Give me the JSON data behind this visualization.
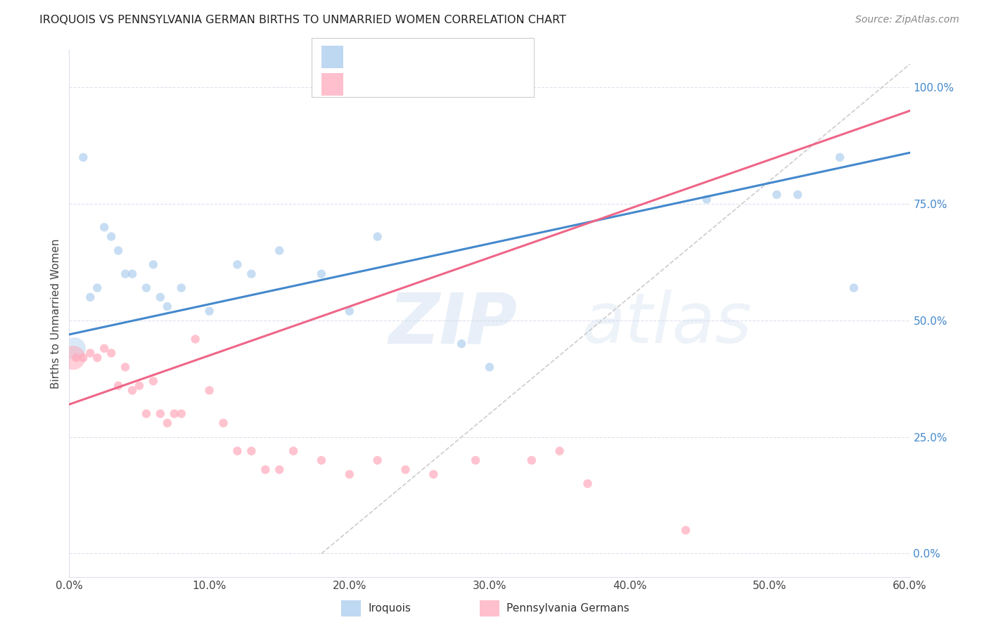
{
  "title": "IROQUOIS VS PENNSYLVANIA GERMAN BIRTHS TO UNMARRIED WOMEN CORRELATION CHART",
  "source": "Source: ZipAtlas.com",
  "ylabel": "Births to Unmarried Women",
  "blue_color": "#AACCEE",
  "pink_color": "#FFAABB",
  "blue_line_color": "#4488CC",
  "pink_line_color": "#EE6688",
  "ref_line_color": "#CCCCCC",
  "grid_color": "#E0E0EE",
  "bg_color": "#FFFFFF",
  "xlim": [
    0,
    60
  ],
  "ylim": [
    -5,
    108
  ],
  "xticks": [
    0,
    10,
    20,
    30,
    40,
    50,
    60
  ],
  "xtick_labels": [
    "0.0%",
    "10.0%",
    "20.0%",
    "30.0%",
    "40.0%",
    "50.0%",
    "60.0%"
  ],
  "yticks_right": [
    0,
    25,
    50,
    75,
    100
  ],
  "ytick_labels_right": [
    "0.0%",
    "25.0%",
    "50.0%",
    "75.0%",
    "100.0%"
  ],
  "legend_label1": "Iroquois",
  "legend_label2": "Pennsylvania Germans",
  "iroquois_x": [
    1.0,
    2.5,
    3.0,
    3.5,
    4.5,
    5.5,
    6.5,
    7.0,
    10.0,
    12.0,
    15.0,
    18.0,
    22.0,
    28.0,
    45.5,
    50.5,
    55.0,
    1.5,
    2.0,
    4.0,
    6.0,
    8.0,
    13.0,
    20.0,
    30.0,
    52.0,
    56.0
  ],
  "iroquois_y": [
    85.0,
    70.0,
    68.0,
    65.0,
    60.0,
    57.0,
    55.0,
    53.0,
    52.0,
    62.0,
    65.0,
    60.0,
    68.0,
    45.0,
    76.0,
    77.0,
    85.0,
    55.0,
    57.0,
    60.0,
    62.0,
    57.0,
    60.0,
    52.0,
    40.0,
    77.0,
    57.0
  ],
  "pagerman_x": [
    0.5,
    1.0,
    1.5,
    2.0,
    2.5,
    3.0,
    3.5,
    4.0,
    4.5,
    5.0,
    5.5,
    6.0,
    6.5,
    7.5,
    8.0,
    9.0,
    10.0,
    11.0,
    12.0,
    13.0,
    14.0,
    15.0,
    16.0,
    18.0,
    20.0,
    22.0,
    24.0,
    26.0,
    29.0,
    33.0,
    35.0,
    37.0,
    7.0,
    44.0
  ],
  "pagerman_y": [
    42.0,
    42.0,
    43.0,
    42.0,
    44.0,
    43.0,
    36.0,
    40.0,
    35.0,
    36.0,
    30.0,
    37.0,
    30.0,
    30.0,
    30.0,
    46.0,
    35.0,
    28.0,
    22.0,
    22.0,
    18.0,
    18.0,
    22.0,
    20.0,
    17.0,
    20.0,
    18.0,
    17.0,
    20.0,
    20.0,
    22.0,
    15.0,
    28.0,
    5.0
  ],
  "pagerman_sizes_list": [
    80,
    80,
    80,
    80,
    80,
    80,
    80,
    80,
    80,
    80,
    80,
    80,
    80,
    80,
    80,
    80,
    80,
    80,
    80,
    80,
    80,
    80,
    80,
    80,
    80,
    80,
    80,
    80,
    80,
    80,
    80,
    80,
    80,
    80
  ],
  "pagerman_large_x": [
    0.3
  ],
  "pagerman_large_y": [
    42.0
  ],
  "pagerman_large_size": [
    600
  ],
  "iroquois_sizes_list": [
    80,
    80,
    80,
    80,
    80,
    80,
    80,
    80,
    80,
    80,
    80,
    80,
    80,
    80,
    80,
    80,
    80,
    80,
    80,
    80,
    80,
    80,
    80,
    80,
    80,
    80,
    80
  ],
  "blue_reg_x0": 0,
  "blue_reg_y0": 47.0,
  "blue_reg_x1": 60,
  "blue_reg_y1": 86.0,
  "pink_reg_x0": 0,
  "pink_reg_y0": 32.0,
  "pink_reg_x1": 60,
  "pink_reg_y1": 95.0,
  "ref_x0": 18,
  "ref_y0": 0,
  "ref_x1": 60,
  "ref_y1": 105
}
